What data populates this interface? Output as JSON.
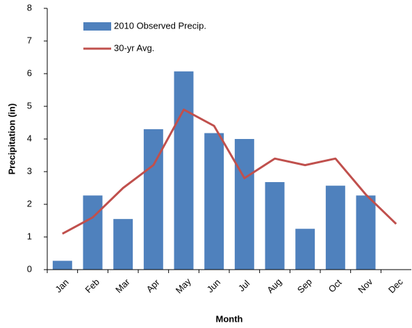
{
  "chart_data": {
    "type": "bar",
    "x_label": "Month",
    "y_label": "Precipitation (in)",
    "categories": [
      "Jan",
      "Feb",
      "Mar",
      "Apr",
      "May",
      "Jun",
      "Jul",
      "Aug",
      "Sep",
      "Oct",
      "Nov",
      "Dec"
    ],
    "series": [
      {
        "name": "2010 Observed Precip.",
        "type": "bar",
        "color": "#4f81bd",
        "values": [
          0.27,
          2.27,
          1.55,
          4.3,
          6.07,
          4.18,
          4.0,
          2.68,
          1.25,
          2.57,
          2.27,
          null
        ]
      },
      {
        "name": "30-yr Avg.",
        "type": "line",
        "color": "#c0504d",
        "values": [
          1.1,
          1.6,
          2.5,
          3.2,
          4.9,
          4.4,
          2.8,
          3.4,
          3.2,
          3.4,
          2.3,
          1.4
        ]
      }
    ],
    "ylim": [
      0,
      8
    ],
    "yticks": [
      0,
      1,
      2,
      3,
      4,
      5,
      6,
      7,
      8
    ],
    "grid": false,
    "legend": "upper-left"
  }
}
